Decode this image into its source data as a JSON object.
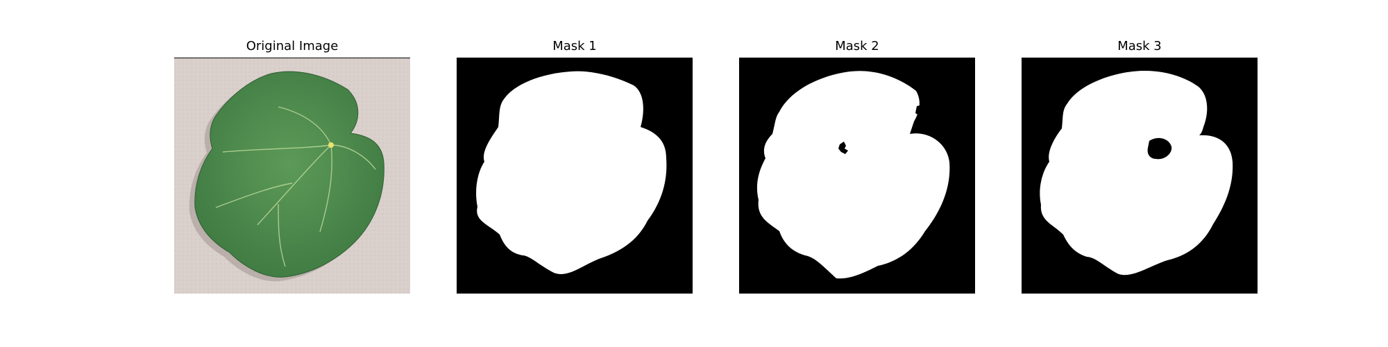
{
  "panels": [
    {
      "title": "Original Image",
      "kind": "photo"
    },
    {
      "title": "Mask 1",
      "kind": "mask"
    },
    {
      "title": "Mask 2",
      "kind": "mask"
    },
    {
      "title": "Mask 3",
      "kind": "mask"
    }
  ],
  "colors": {
    "mask_background": "#000000",
    "mask_foreground": "#ffffff",
    "photo_background": "#d9cfcb",
    "leaf_green": "#4e8a4e",
    "leaf_dark": "#3a6e3c",
    "leaf_vein": "#bcd89a"
  }
}
